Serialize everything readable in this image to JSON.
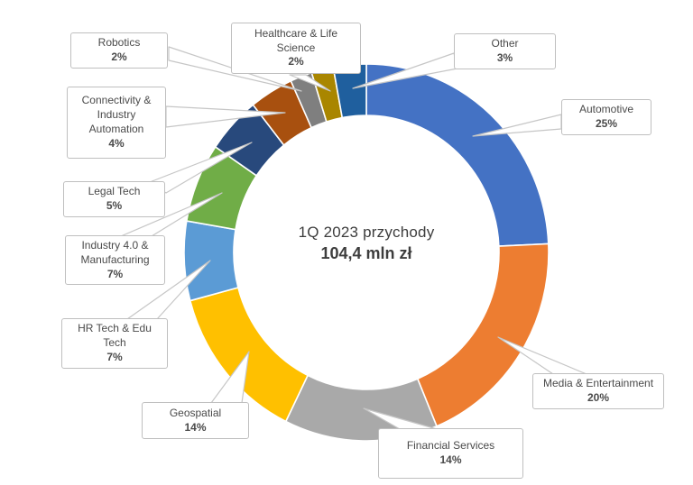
{
  "chart_data": {
    "type": "pie",
    "variant": "donut",
    "title": "1Q 2023 przychody",
    "center_title": "1Q 2023 przychody",
    "center_value": "104,4 mln zł",
    "legend_position": "callout-labels-around-chart",
    "background": "#FFFFFF",
    "start_angle_deg": 0,
    "direction": "clockwise",
    "slices": [
      {
        "label": "Automotive",
        "pct": "25%",
        "value": 25,
        "color": "#4472C4"
      },
      {
        "label": "Media & Entertainment",
        "pct": "20%",
        "value": 20,
        "color": "#ED7D31"
      },
      {
        "label": "Financial Services",
        "pct": "14%",
        "value": 14,
        "color": "#A9A9A9"
      },
      {
        "label": "Geospatial",
        "pct": "14%",
        "value": 14,
        "color": "#FFC000"
      },
      {
        "label": "HR Tech & Edu Tech",
        "pct": "7%",
        "value": 7,
        "color": "#5B9BD5"
      },
      {
        "label": "Industry 4.0 & Manufacturing",
        "pct": "7%",
        "value": 7,
        "color": "#70AD47"
      },
      {
        "label": "Legal Tech",
        "pct": "5%",
        "value": 5,
        "color": "#28497C"
      },
      {
        "label": "Connectivity & Industry Automation",
        "pct": "4%",
        "value": 4,
        "color": "#A8500F"
      },
      {
        "label": "Robotics",
        "pct": "2%",
        "value": 2,
        "color": "#7F7F7F"
      },
      {
        "label": "Healthcare & Life Science",
        "pct": "2%",
        "value": 2,
        "color": "#A98600"
      },
      {
        "label": "Other",
        "pct": "3%",
        "value": 3,
        "color": "#1F5F9E"
      }
    ]
  }
}
